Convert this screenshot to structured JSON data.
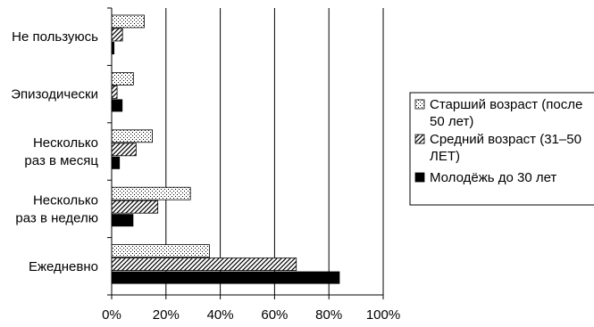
{
  "chart_data": {
    "type": "bar",
    "orientation": "horizontal",
    "categories": [
      "Не пользуюсь",
      "Эпизодически",
      "Несколько раз в месяц",
      "Несколько раз в неделю",
      "Ежедневно"
    ],
    "category_label_lines": [
      [
        "Не пользуюсь"
      ],
      [
        "Эпизодически"
      ],
      [
        "Несколько",
        "раз в месяц"
      ],
      [
        "Несколько",
        "раз в неделю"
      ],
      [
        "Ежедневно"
      ]
    ],
    "series": [
      {
        "name": "Старший возраст (после 50 лет)",
        "legend_lines": [
          "Старший возраст (после",
          "50 лет)"
        ],
        "pattern": "dots",
        "values": [
          12,
          8,
          15,
          29,
          36
        ]
      },
      {
        "name": "Средний возраст (31–50 ЛЕТ)",
        "legend_lines": [
          "Средний возраст (31–50",
          "ЛЕТ)"
        ],
        "pattern": "diagonal-hatch",
        "values": [
          4,
          2,
          9,
          17,
          68
        ]
      },
      {
        "name": "Молодёжь до 30 лет",
        "legend_lines": [
          "Молодёжь до 30 лет"
        ],
        "pattern": "solid",
        "values": [
          1,
          4,
          3,
          8,
          84
        ]
      }
    ],
    "x_ticks": [
      "0%",
      "20%",
      "40%",
      "60%",
      "80%",
      "100%"
    ],
    "xlim": [
      0,
      100
    ],
    "grid": true,
    "legend_position": "right",
    "colors": {
      "bar_fill": "#000000",
      "background": "#ffffff",
      "grid": "#000000"
    }
  }
}
